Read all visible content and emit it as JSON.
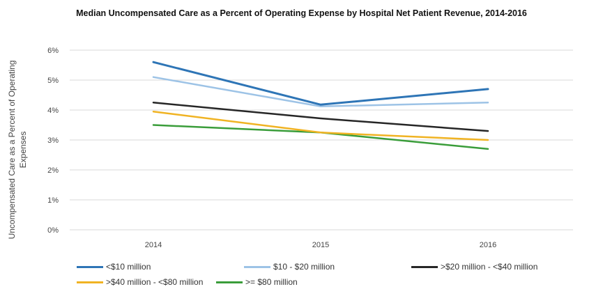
{
  "chart_data": {
    "type": "line",
    "title": "Median Uncompensated Care as a Percent of Operating Expense by Hospital Net Patient Revenue, 2014-2016",
    "ylabel": "Uncompensated Care as a Percent of Operating Expenses",
    "xlabel": "",
    "x": [
      "2014",
      "2015",
      "2016"
    ],
    "ylim": [
      0,
      6
    ],
    "yticks": [
      "0%",
      "1%",
      "2%",
      "3%",
      "4%",
      "5%",
      "6%"
    ],
    "grid": true,
    "legend_position": "bottom",
    "series": [
      {
        "name": "<$10 million",
        "color": "#2e75b6",
        "values": [
          5.6,
          4.18,
          4.7
        ]
      },
      {
        "name": "$10 - $20 million",
        "color": "#9dc3e6",
        "values": [
          5.1,
          4.12,
          4.25
        ]
      },
      {
        "name": ">$20 million - <$40 million",
        "color": "#262626",
        "values": [
          4.25,
          3.72,
          3.3
        ]
      },
      {
        "name": ">$40 million - <$80 million",
        "color": "#f0b323",
        "values": [
          3.95,
          3.25,
          3.0
        ]
      },
      {
        "name": ">= $80 million",
        "color": "#3a9d3a",
        "values": [
          3.5,
          3.25,
          2.7
        ]
      }
    ]
  }
}
